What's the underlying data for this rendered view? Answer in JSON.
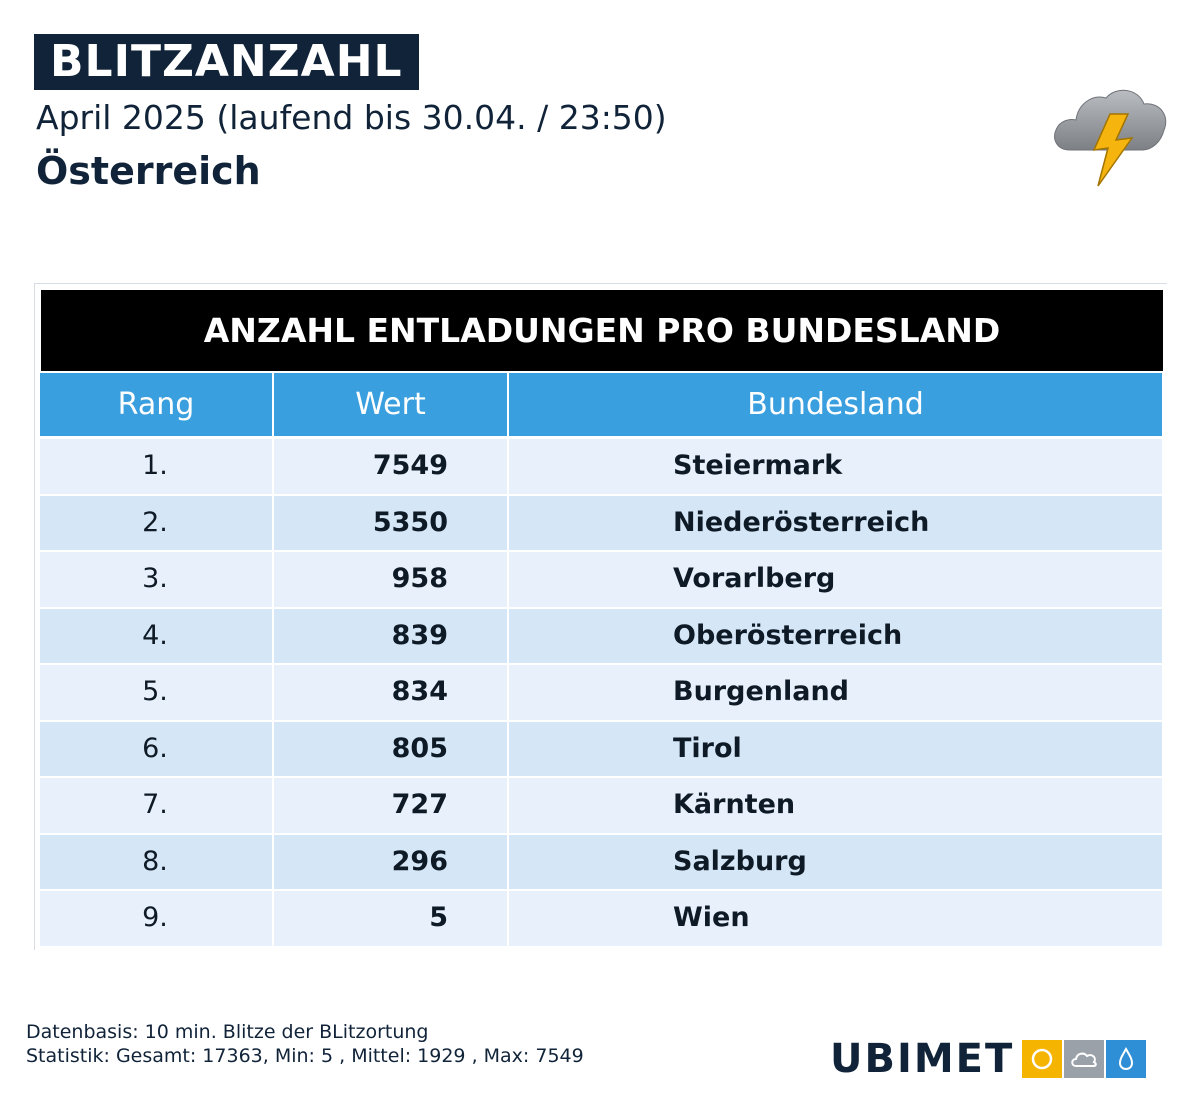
{
  "header": {
    "title": "BLITZANZAHL",
    "subtitle": "April 2025 (laufend bis 30.04. / 23:50)",
    "region": "Österreich"
  },
  "icons": {
    "weather": "thunderstorm-cloud-icon",
    "brand_tiles": [
      "sun-icon",
      "cloud-icon",
      "raindrop-icon"
    ]
  },
  "colors": {
    "navy": "#102338",
    "table_header": "#3a9fdf",
    "row_light": "#e8f1fb",
    "row_dark": "#d5e6f6",
    "lightning": "#f5b400"
  },
  "chart_data": {
    "type": "table",
    "title": "ANZAHL ENTLADUNGEN PRO BUNDESLAND",
    "columns": [
      "Rang",
      "Wert",
      "Bundesland"
    ],
    "rows": [
      {
        "rang": "1.",
        "wert": "7549",
        "land": "Steiermark"
      },
      {
        "rang": "2.",
        "wert": "5350",
        "land": "Niederösterreich"
      },
      {
        "rang": "3.",
        "wert": "958",
        "land": "Vorarlberg"
      },
      {
        "rang": "4.",
        "wert": "839",
        "land": "Oberösterreich"
      },
      {
        "rang": "5.",
        "wert": "834",
        "land": "Burgenland"
      },
      {
        "rang": "6.",
        "wert": "805",
        "land": "Tirol"
      },
      {
        "rang": "7.",
        "wert": "727",
        "land": "Kärnten"
      },
      {
        "rang": "8.",
        "wert": "296",
        "land": "Salzburg"
      },
      {
        "rang": "9.",
        "wert": "5",
        "land": "Wien"
      }
    ]
  },
  "footer": {
    "line1": "Datenbasis: 10 min. Blitze der BLitzortung",
    "line2": "Statistik: Gesamt: 17363, Min: 5 , Mittel: 1929 , Max: 7549",
    "brand": "UBIMET"
  }
}
